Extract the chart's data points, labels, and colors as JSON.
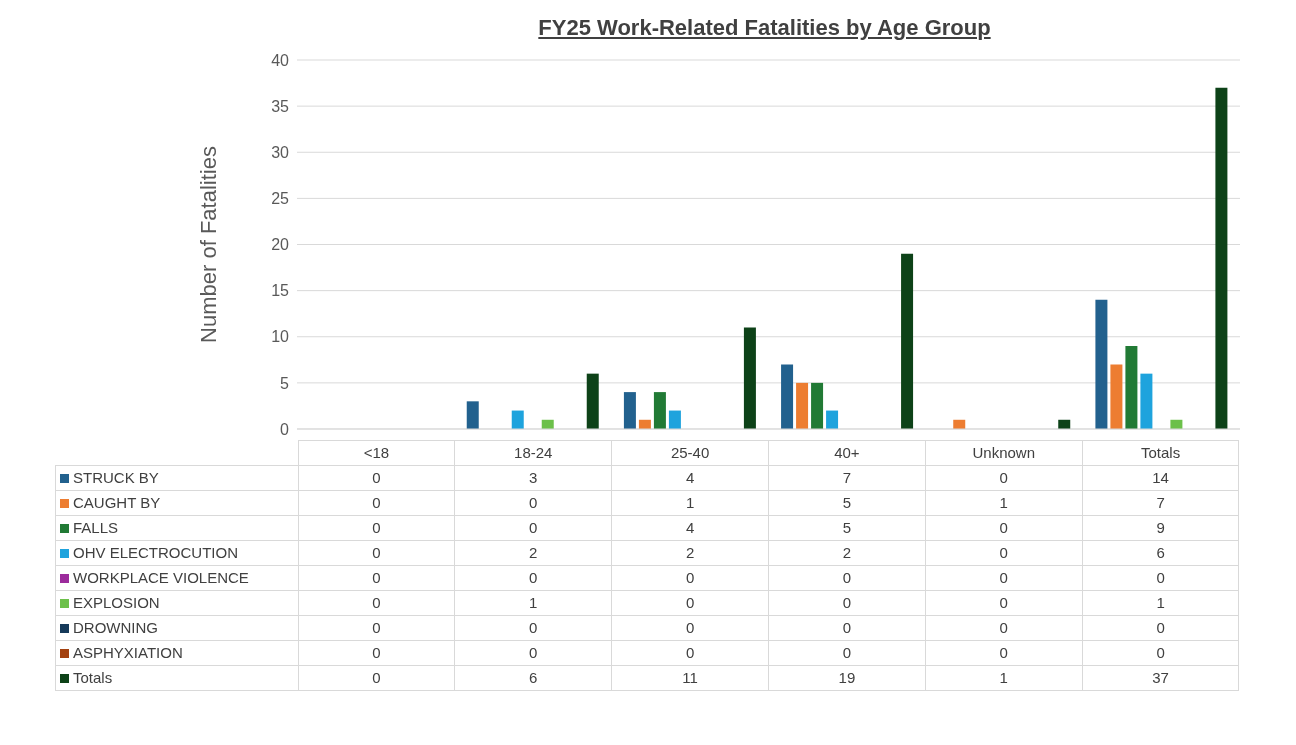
{
  "chart_data": {
    "type": "bar",
    "title": "FY25 Work-Related Fatalities by Age Group",
    "ylabel": "Number of Fatalities",
    "categories": [
      "<18",
      "18-24",
      "25-40",
      "40+",
      "Unknown",
      "Totals"
    ],
    "series": [
      {
        "name": "STRUCK BY",
        "color": "#22618e",
        "values": [
          0,
          3,
          4,
          7,
          0,
          14
        ]
      },
      {
        "name": "CAUGHT BY",
        "color": "#ed7d31",
        "values": [
          0,
          0,
          1,
          5,
          1,
          7
        ]
      },
      {
        "name": "FALLS",
        "color": "#217a35",
        "values": [
          0,
          0,
          4,
          5,
          0,
          9
        ]
      },
      {
        "name": "OHV ELECTROCUTION",
        "color": "#1ea3dd",
        "values": [
          0,
          2,
          2,
          2,
          0,
          6
        ]
      },
      {
        "name": "WORKPLACE VIOLENCE",
        "color": "#9c2b9c",
        "values": [
          0,
          0,
          0,
          0,
          0,
          0
        ]
      },
      {
        "name": "EXPLOSION",
        "color": "#6cc04a",
        "values": [
          0,
          1,
          0,
          0,
          0,
          1
        ]
      },
      {
        "name": "DROWNING",
        "color": "#163a5a",
        "values": [
          0,
          0,
          0,
          0,
          0,
          0
        ]
      },
      {
        "name": "ASPHYXIATION",
        "color": "#a3410f",
        "values": [
          0,
          0,
          0,
          0,
          0,
          0
        ]
      },
      {
        "name": "Totals",
        "color": "#0d4218",
        "values": [
          0,
          6,
          11,
          19,
          1,
          37
        ]
      }
    ],
    "ylim": [
      0,
      40
    ],
    "yticks": [
      0,
      5,
      10,
      15,
      20,
      25,
      30,
      35,
      40
    ],
    "grid": "y",
    "legend": "bottom",
    "data_labels": true
  }
}
